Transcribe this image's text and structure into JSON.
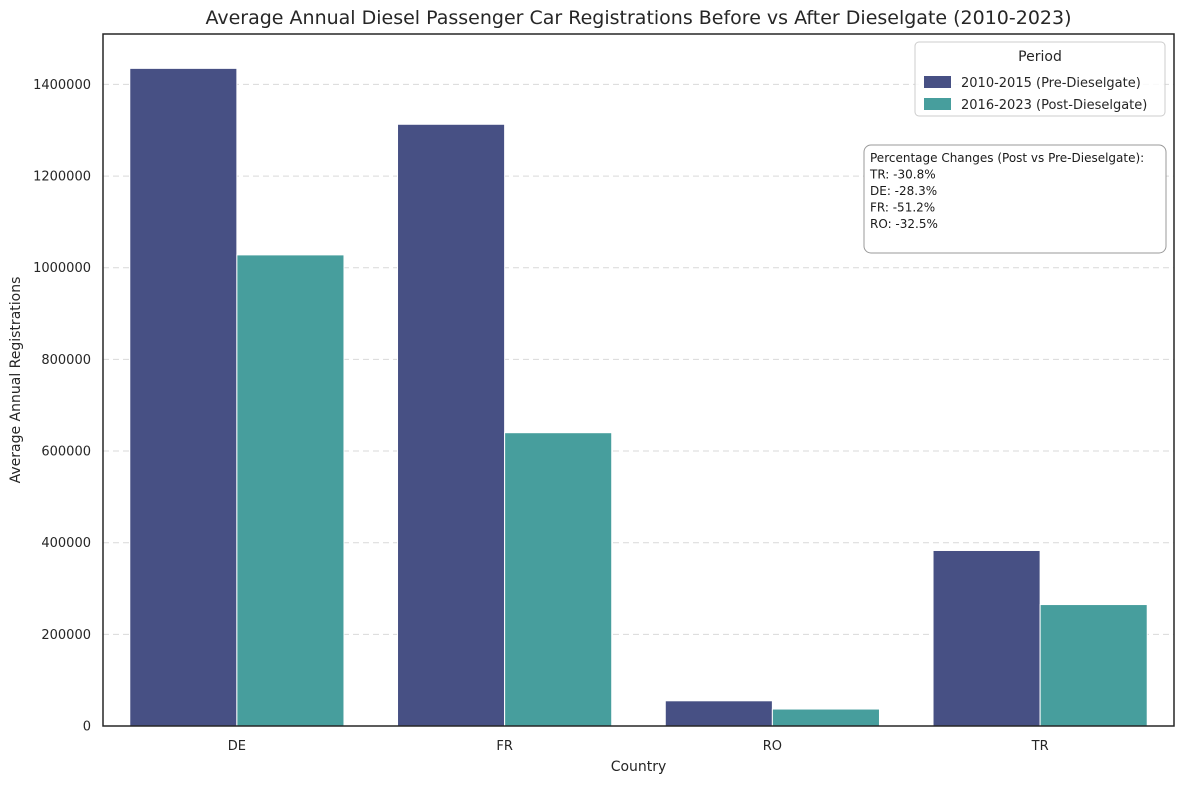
{
  "chart_data": {
    "type": "bar",
    "title": "Average Annual Diesel Passenger Car Registrations Before vs After Dieselgate (2010-2023)",
    "xlabel": "Country",
    "ylabel": "Average Annual Registrations",
    "categories": [
      "DE",
      "FR",
      "RO",
      "TR"
    ],
    "series": [
      {
        "name": "2010-2015 (Pre-Dieselgate)",
        "color": "#475084",
        "values": [
          1435000,
          1313000,
          55000,
          383000
        ]
      },
      {
        "name": "2016-2023 (Post-Dieselgate)",
        "color": "#479e9d",
        "values": [
          1028000,
          640000,
          37000,
          265000
        ]
      }
    ],
    "ylim": [
      0,
      1510000
    ],
    "yticks": [
      0,
      200000,
      400000,
      600000,
      800000,
      1000000,
      1200000,
      1400000
    ],
    "ytick_labels": [
      "0",
      "200000",
      "400000",
      "600000",
      "800000",
      "1000000",
      "1200000",
      "1400000"
    ],
    "grid": "horizontal dashed",
    "legend": {
      "title": "Period",
      "placement": "top-right"
    },
    "annotation": {
      "lines": [
        "Percentage Changes (Post vs Pre-Dieselgate):",
        "TR: -30.8%",
        "DE: -28.3%",
        "FR: -51.2%",
        "RO: -32.5%"
      ]
    }
  }
}
